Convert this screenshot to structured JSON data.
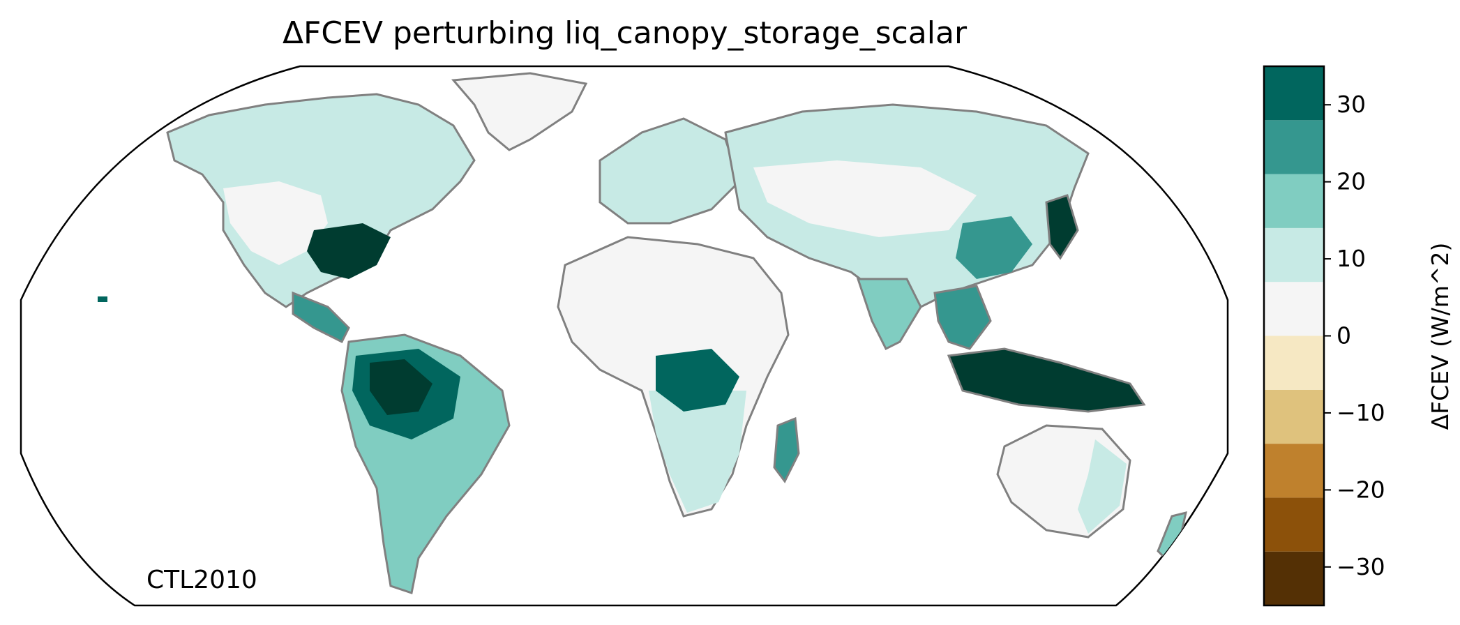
{
  "title": "ΔFCEV perturbing liq_canopy_storage_scalar",
  "panel_label": "CTL2010",
  "colorbar": {
    "label": "ΔFCEV (W/m^2)",
    "vmin": -35,
    "vmax": 35,
    "levels": [
      -35,
      -28,
      -21,
      -14,
      -7,
      0,
      7,
      14,
      21,
      28,
      35
    ],
    "colors": [
      "#543005",
      "#8c510a",
      "#bf812d",
      "#dfc27d",
      "#f6e8c3",
      "#f5f5f5",
      "#c7eae5",
      "#80cdc1",
      "#35978f",
      "#01665e",
      "#003c30"
    ],
    "ticks": [
      {
        "value": 30,
        "label": "30"
      },
      {
        "value": 20,
        "label": "20"
      },
      {
        "value": 10,
        "label": "10"
      },
      {
        "value": 0,
        "label": "0"
      },
      {
        "value": -10,
        "label": "−10"
      },
      {
        "value": -20,
        "label": "−20"
      },
      {
        "value": -30,
        "label": "−30"
      }
    ]
  },
  "map": {
    "projection": "Robinson",
    "coastline_color": "#808080",
    "border_color": "#c0c0c0",
    "land_fill": "#f2f2f2"
  }
}
